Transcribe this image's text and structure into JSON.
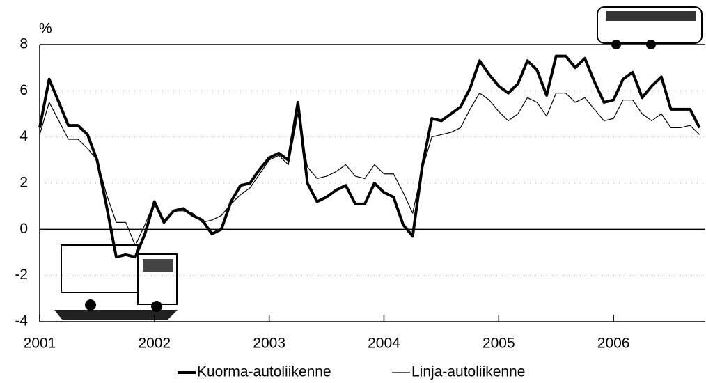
{
  "chart_data": {
    "type": "line",
    "y_unit": "%",
    "x": [
      2001,
      2001.083,
      2001.167,
      2001.25,
      2001.333,
      2001.417,
      2001.5,
      2001.583,
      2001.667,
      2001.75,
      2001.833,
      2001.917,
      2002,
      2002.083,
      2002.167,
      2002.25,
      2002.333,
      2002.417,
      2002.5,
      2002.583,
      2002.667,
      2002.75,
      2002.833,
      2002.917,
      2003,
      2003.083,
      2003.167,
      2003.25,
      2003.333,
      2003.417,
      2003.5,
      2003.583,
      2003.667,
      2003.75,
      2003.833,
      2003.917,
      2004,
      2004.083,
      2004.167,
      2004.25,
      2004.333,
      2004.417,
      2004.5,
      2004.583,
      2004.667,
      2004.75,
      2004.833,
      2004.917,
      2005,
      2005.083,
      2005.167,
      2005.25,
      2005.333,
      2005.417,
      2005.5,
      2005.583,
      2005.667,
      2005.75,
      2005.833,
      2005.917,
      2006,
      2006.083,
      2006.167,
      2006.25,
      2006.333,
      2006.417,
      2006.5,
      2006.583,
      2006.667,
      2006.75
    ],
    "series": [
      {
        "name": "Kuorma-autoliikenne",
        "color": "#000000",
        "width": 4,
        "values": [
          4.4,
          6.5,
          5.5,
          4.5,
          4.5,
          4.1,
          3.0,
          1.0,
          -1.2,
          -1.1,
          -1.2,
          -0.2,
          1.2,
          0.3,
          0.8,
          0.9,
          0.6,
          0.4,
          -0.2,
          0.0,
          1.2,
          1.9,
          2.0,
          2.6,
          3.1,
          3.3,
          3.0,
          5.5,
          2.0,
          1.2,
          1.4,
          1.7,
          1.9,
          1.1,
          1.1,
          2.0,
          1.6,
          1.4,
          0.2,
          -0.3,
          2.7,
          4.8,
          4.7,
          5.0,
          5.3,
          6.1,
          7.3,
          6.7,
          6.2,
          5.9,
          6.3,
          7.3,
          6.9,
          5.8,
          7.5,
          7.5,
          7.0,
          7.4,
          6.4,
          5.5,
          5.6,
          6.5,
          6.8,
          5.7,
          6.2,
          6.6,
          5.2,
          5.2,
          5.2,
          4.4
        ]
      },
      {
        "name": "Linja-autoliikenne",
        "color": "#000000",
        "width": 1.2,
        "values": [
          4.1,
          5.5,
          4.7,
          3.9,
          3.9,
          3.5,
          3.0,
          1.5,
          0.3,
          0.3,
          -0.7,
          0.2,
          1.2,
          0.4,
          0.8,
          0.8,
          0.7,
          0.3,
          0.4,
          0.6,
          1.1,
          1.5,
          1.8,
          2.4,
          3.0,
          3.2,
          2.8,
          5.0,
          2.7,
          2.2,
          2.3,
          2.5,
          2.8,
          2.3,
          2.2,
          2.8,
          2.4,
          2.4,
          1.6,
          0.7,
          2.6,
          4.0,
          4.1,
          4.2,
          4.4,
          5.2,
          5.9,
          5.6,
          5.1,
          4.7,
          5.0,
          5.7,
          5.5,
          4.9,
          5.9,
          5.9,
          5.5,
          5.7,
          5.2,
          4.7,
          4.8,
          5.6,
          5.6,
          5.0,
          4.7,
          5.0,
          4.4,
          4.4,
          4.5,
          4.1
        ]
      }
    ],
    "xlim": [
      2001,
      2006.8
    ],
    "xticks": [
      2001,
      2002,
      2003,
      2004,
      2005,
      2006
    ],
    "ylim": [
      -4,
      8
    ],
    "yticks": [
      -4,
      -2,
      0,
      2,
      4,
      6,
      8
    ],
    "grid": true
  }
}
